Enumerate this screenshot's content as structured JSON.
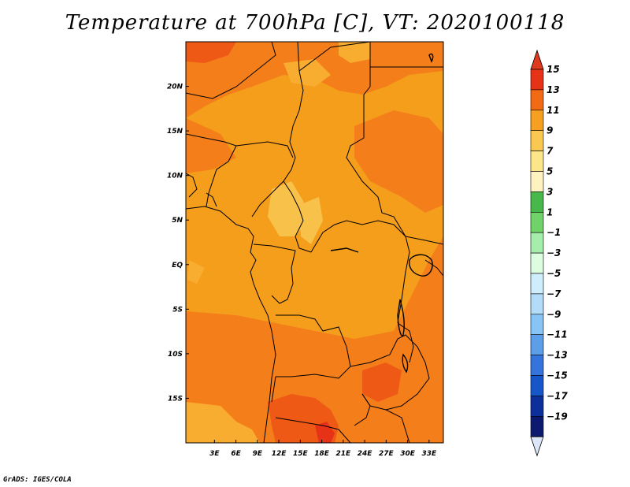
{
  "title": "Temperature at 700hPa [C], VT: 2020100118",
  "credit": "GrADS: IGES/COLA",
  "map": {
    "lon_range": [
      -1,
      35
    ],
    "lat_range": [
      -20,
      25
    ],
    "x_ticks": [
      "3E",
      "6E",
      "9E",
      "12E",
      "15E",
      "18E",
      "21E",
      "24E",
      "27E",
      "30E",
      "33E"
    ],
    "x_tick_values": [
      3,
      6,
      9,
      12,
      15,
      18,
      21,
      24,
      27,
      30,
      33
    ],
    "y_ticks": [
      "20N",
      "15N",
      "10N",
      "5N",
      "EQ",
      "5S",
      "10S",
      "15S"
    ],
    "y_tick_values": [
      20,
      15,
      10,
      5,
      0,
      -5,
      -10,
      -15
    ]
  },
  "colorbar": {
    "labels": [
      "15",
      "13",
      "11",
      "9",
      "7",
      "5",
      "3",
      "1",
      "−1",
      "−3",
      "−5",
      "−7",
      "−9",
      "−11",
      "−13",
      "−15",
      "−17",
      "−19"
    ],
    "colors": [
      "#e63216",
      "#f26a14",
      "#f5a020",
      "#f8c850",
      "#fde68a",
      "#fef3c0",
      "#49b84a",
      "#6fd36a",
      "#a6ecaa",
      "#dcfde0",
      "#cfeefb",
      "#b2dcf8",
      "#88c4f4",
      "#5c9ee8",
      "#3474dc",
      "#1656c8",
      "#0d2f9a",
      "#0b1a6e"
    ],
    "top_arrow_color": "#dd3a1e",
    "bottom_arrow_color": "#dce6f8"
  }
}
